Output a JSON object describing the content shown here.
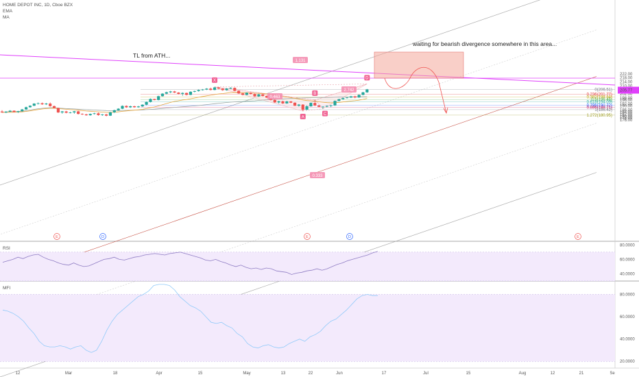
{
  "header": {
    "symbol_line": "HOME DEPOT INC, 1D, Cboe BZX",
    "ema": "EMA",
    "ma": "MA"
  },
  "annotations": {
    "tl_from_ath": "TL from ATH...",
    "waiting": "waiting for bearish divergence somewhere in this area..."
  },
  "pattern_points": [
    {
      "label": "X",
      "date": "2019-04-22",
      "price": 209.0
    },
    {
      "label": "A",
      "date": "2019-05-22",
      "price": 185.0
    },
    {
      "label": "B",
      "date": "2019-05-28",
      "price": 196.0
    },
    {
      "label": "C",
      "date": "2019-05-30",
      "price": 187.3
    },
    {
      "label": "D",
      "date": "2019-06-14",
      "price": 212.0
    }
  ],
  "ratio_labels": [
    "1.131",
    "0.463",
    "2.742",
    "0.333"
  ],
  "fib_levels": [
    {
      "label": "0(206.51)",
      "price": 206.51,
      "color": "#787b86"
    },
    {
      "label": "0.236(201.77)",
      "price": 201.77,
      "color": "#e03a3a"
    },
    {
      "label": "0.382(198.84)",
      "price": 198.84,
      "color": "#b8a000"
    },
    {
      "label": "0.5(196.46)",
      "price": 196.46,
      "color": "#4caf50"
    },
    {
      "label": "0.618(194.09)",
      "price": 194.09,
      "color": "#26a69a"
    },
    {
      "label": "0.786(190.72)",
      "price": 190.72,
      "color": "#2962ff"
    },
    {
      "label": "0.886(188.71)",
      "price": 188.71,
      "color": "#c2185b"
    },
    {
      "label": "1(186.42)",
      "price": 186.42,
      "color": "#787b86"
    },
    {
      "label": "1.272(180.95)",
      "price": 180.95,
      "color": "#9e9d24"
    }
  ],
  "price_axis": {
    "ticks": [
      "222.00",
      "218.00",
      "214.00",
      "210.00",
      "206.00",
      "202.00",
      "198.00",
      "196.00",
      "192.00",
      "190.00",
      "186.00",
      "184.00",
      "182.00",
      "180.00",
      "178.00",
      "176.00"
    ],
    "current_price": "205.77"
  },
  "time_axis": {
    "ticks": [
      "12",
      "Mar",
      "18",
      "Apr",
      "15",
      "May",
      "13",
      "22",
      "Jun",
      "17",
      "Jul",
      "15",
      "Aug",
      "12",
      "21",
      "Se"
    ]
  },
  "events": [
    "E",
    "D",
    "E",
    "D",
    "E"
  ],
  "rsi": {
    "label": "RSI",
    "ticks": [
      "80.0000",
      "60.0000",
      "40.0000"
    ]
  },
  "mfi": {
    "label": "MFI",
    "ticks": [
      "80.0000",
      "60.0000",
      "40.0000",
      "20.0000"
    ]
  },
  "colors": {
    "up": "#26a69a",
    "down": "#ef5350",
    "ema": "#e6a33a",
    "ma": "#9aa5a3",
    "pink_line": "#e040fb",
    "zone": "#f4a79a",
    "oscillator_band": "#f3eafc",
    "oscillator_line": "#7e57c2",
    "pattern_fill": "#fbe4e6"
  },
  "chart_data": [
    {
      "type": "candlestick",
      "title": "HOME DEPOT INC, 1D, Cboe BZX",
      "ylim": [
        176,
        222
      ],
      "candles": [
        {
          "date": "2019-02-04",
          "o": 184.5,
          "h": 185.8,
          "l": 183.3,
          "c": 183.6
        },
        {
          "date": "2019-02-05",
          "o": 183.6,
          "h": 184.9,
          "l": 182.9,
          "c": 184.4
        },
        {
          "date": "2019-02-06",
          "o": 184.4,
          "h": 185.9,
          "l": 183.8,
          "c": 185.3
        },
        {
          "date": "2019-02-07",
          "o": 185.3,
          "h": 185.7,
          "l": 183.7,
          "c": 184.0
        },
        {
          "date": "2019-02-08",
          "o": 184.0,
          "h": 185.2,
          "l": 183.1,
          "c": 184.9
        },
        {
          "date": "2019-02-11",
          "o": 184.9,
          "h": 187.0,
          "l": 184.3,
          "c": 186.6
        },
        {
          "date": "2019-02-12",
          "o": 186.6,
          "h": 189.3,
          "l": 186.2,
          "c": 188.8
        },
        {
          "date": "2019-02-13",
          "o": 188.8,
          "h": 190.7,
          "l": 188.3,
          "c": 190.3
        },
        {
          "date": "2019-02-14",
          "o": 190.3,
          "h": 192.8,
          "l": 189.9,
          "c": 192.4
        },
        {
          "date": "2019-02-15",
          "o": 192.4,
          "h": 193.6,
          "l": 191.5,
          "c": 192.7
        },
        {
          "date": "2019-02-19",
          "o": 192.7,
          "h": 193.5,
          "l": 191.1,
          "c": 191.7
        },
        {
          "date": "2019-02-20",
          "o": 191.7,
          "h": 193.1,
          "l": 191.0,
          "c": 192.4
        },
        {
          "date": "2019-02-21",
          "o": 192.4,
          "h": 193.6,
          "l": 189.3,
          "c": 189.9
        },
        {
          "date": "2019-02-22",
          "o": 189.9,
          "h": 190.5,
          "l": 187.5,
          "c": 188.0
        },
        {
          "date": "2019-02-25",
          "o": 188.0,
          "h": 188.4,
          "l": 183.0,
          "c": 183.6
        },
        {
          "date": "2019-02-26",
          "o": 183.6,
          "h": 185.0,
          "l": 182.3,
          "c": 184.6
        },
        {
          "date": "2019-02-27",
          "o": 184.6,
          "h": 185.2,
          "l": 182.8,
          "c": 183.3
        },
        {
          "date": "2019-02-28",
          "o": 183.3,
          "h": 184.3,
          "l": 182.7,
          "c": 183.6
        },
        {
          "date": "2019-03-01",
          "o": 183.6,
          "h": 185.1,
          "l": 182.3,
          "c": 184.7
        },
        {
          "date": "2019-03-04",
          "o": 184.7,
          "h": 185.2,
          "l": 181.6,
          "c": 182.1
        },
        {
          "date": "2019-03-05",
          "o": 182.1,
          "h": 182.8,
          "l": 181.1,
          "c": 181.6
        },
        {
          "date": "2019-03-06",
          "o": 181.6,
          "h": 182.3,
          "l": 180.3,
          "c": 180.8
        },
        {
          "date": "2019-03-07",
          "o": 180.8,
          "h": 182.5,
          "l": 180.4,
          "c": 182.1
        },
        {
          "date": "2019-03-08",
          "o": 182.1,
          "h": 183.3,
          "l": 181.5,
          "c": 182.7
        },
        {
          "date": "2019-03-11",
          "o": 182.7,
          "h": 183.5,
          "l": 180.3,
          "c": 181.0
        },
        {
          "date": "2019-03-12",
          "o": 181.0,
          "h": 182.0,
          "l": 180.2,
          "c": 181.6
        },
        {
          "date": "2019-03-13",
          "o": 181.6,
          "h": 182.2,
          "l": 179.7,
          "c": 180.4
        },
        {
          "date": "2019-03-14",
          "o": 180.4,
          "h": 184.3,
          "l": 180.0,
          "c": 183.7
        },
        {
          "date": "2019-03-15",
          "o": 183.7,
          "h": 186.4,
          "l": 183.1,
          "c": 185.8
        },
        {
          "date": "2019-03-18",
          "o": 185.8,
          "h": 187.8,
          "l": 185.3,
          "c": 187.3
        },
        {
          "date": "2019-03-19",
          "o": 187.3,
          "h": 190.6,
          "l": 186.9,
          "c": 190.1
        },
        {
          "date": "2019-03-20",
          "o": 190.1,
          "h": 190.6,
          "l": 188.2,
          "c": 188.7
        },
        {
          "date": "2019-03-21",
          "o": 188.7,
          "h": 190.4,
          "l": 188.1,
          "c": 189.8
        },
        {
          "date": "2019-03-22",
          "o": 189.8,
          "h": 190.3,
          "l": 188.3,
          "c": 188.8
        },
        {
          "date": "2019-03-25",
          "o": 188.8,
          "h": 190.2,
          "l": 188.3,
          "c": 189.6
        },
        {
          "date": "2019-03-26",
          "o": 189.6,
          "h": 191.7,
          "l": 189.1,
          "c": 191.3
        },
        {
          "date": "2019-03-27",
          "o": 191.3,
          "h": 194.5,
          "l": 190.7,
          "c": 194.1
        },
        {
          "date": "2019-03-28",
          "o": 194.1,
          "h": 197.6,
          "l": 193.5,
          "c": 197.0
        },
        {
          "date": "2019-03-29",
          "o": 197.0,
          "h": 197.3,
          "l": 195.7,
          "c": 196.0
        },
        {
          "date": "2019-04-01",
          "o": 196.0,
          "h": 200.3,
          "l": 195.6,
          "c": 199.8
        },
        {
          "date": "2019-04-02",
          "o": 199.8,
          "h": 202.8,
          "l": 199.3,
          "c": 202.3
        },
        {
          "date": "2019-04-03",
          "o": 202.3,
          "h": 204.3,
          "l": 201.6,
          "c": 203.7
        },
        {
          "date": "2019-04-04",
          "o": 203.7,
          "h": 205.1,
          "l": 202.8,
          "c": 204.5
        },
        {
          "date": "2019-04-05",
          "o": 204.5,
          "h": 205.0,
          "l": 202.9,
          "c": 203.4
        },
        {
          "date": "2019-04-08",
          "o": 203.4,
          "h": 203.8,
          "l": 201.6,
          "c": 202.1
        },
        {
          "date": "2019-04-09",
          "o": 202.1,
          "h": 203.6,
          "l": 200.2,
          "c": 203.0
        },
        {
          "date": "2019-04-10",
          "o": 203.0,
          "h": 203.4,
          "l": 200.5,
          "c": 201.1
        },
        {
          "date": "2019-04-11",
          "o": 201.1,
          "h": 204.7,
          "l": 200.8,
          "c": 204.2
        },
        {
          "date": "2019-04-12",
          "o": 204.2,
          "h": 205.3,
          "l": 203.6,
          "c": 204.9
        },
        {
          "date": "2019-04-15",
          "o": 204.9,
          "h": 206.5,
          "l": 204.3,
          "c": 205.9
        },
        {
          "date": "2019-04-16",
          "o": 205.9,
          "h": 206.9,
          "l": 205.4,
          "c": 206.4
        },
        {
          "date": "2019-04-17",
          "o": 206.4,
          "h": 207.8,
          "l": 205.9,
          "c": 207.3
        },
        {
          "date": "2019-04-18",
          "o": 207.3,
          "h": 208.3,
          "l": 205.5,
          "c": 206.0
        },
        {
          "date": "2019-04-22",
          "o": 206.0,
          "h": 209.2,
          "l": 205.6,
          "c": 208.5
        },
        {
          "date": "2019-04-23",
          "o": 208.5,
          "h": 208.9,
          "l": 206.6,
          "c": 207.3
        },
        {
          "date": "2019-04-24",
          "o": 207.3,
          "h": 207.7,
          "l": 205.2,
          "c": 205.8
        },
        {
          "date": "2019-04-25",
          "o": 205.8,
          "h": 207.9,
          "l": 205.3,
          "c": 207.4
        },
        {
          "date": "2019-04-26",
          "o": 207.4,
          "h": 208.6,
          "l": 206.9,
          "c": 208.1
        },
        {
          "date": "2019-04-29",
          "o": 208.1,
          "h": 208.5,
          "l": 204.7,
          "c": 205.1
        },
        {
          "date": "2019-04-30",
          "o": 205.1,
          "h": 205.6,
          "l": 202.1,
          "c": 202.6
        },
        {
          "date": "2019-05-01",
          "o": 202.6,
          "h": 203.0,
          "l": 200.5,
          "c": 201.1
        },
        {
          "date": "2019-05-02",
          "o": 201.1,
          "h": 203.6,
          "l": 200.7,
          "c": 203.2
        },
        {
          "date": "2019-05-03",
          "o": 203.2,
          "h": 203.6,
          "l": 201.6,
          "c": 202.0
        },
        {
          "date": "2019-05-06",
          "o": 202.0,
          "h": 202.4,
          "l": 199.2,
          "c": 199.6
        },
        {
          "date": "2019-05-07",
          "o": 199.6,
          "h": 202.1,
          "l": 199.1,
          "c": 201.6
        },
        {
          "date": "2019-05-08",
          "o": 201.6,
          "h": 202.5,
          "l": 199.5,
          "c": 200.0
        },
        {
          "date": "2019-05-09",
          "o": 200.0,
          "h": 200.5,
          "l": 197.9,
          "c": 198.4
        },
        {
          "date": "2019-05-10",
          "o": 198.4,
          "h": 198.9,
          "l": 195.5,
          "c": 196.0
        },
        {
          "date": "2019-05-13",
          "o": 196.0,
          "h": 196.6,
          "l": 193.1,
          "c": 193.6
        },
        {
          "date": "2019-05-14",
          "o": 193.6,
          "h": 195.2,
          "l": 192.4,
          "c": 194.7
        },
        {
          "date": "2019-05-15",
          "o": 194.7,
          "h": 195.2,
          "l": 192.1,
          "c": 192.6
        },
        {
          "date": "2019-05-16",
          "o": 192.6,
          "h": 195.1,
          "l": 192.2,
          "c": 194.6
        },
        {
          "date": "2019-05-17",
          "o": 194.6,
          "h": 195.0,
          "l": 192.8,
          "c": 193.3
        },
        {
          "date": "2019-05-20",
          "o": 193.3,
          "h": 193.7,
          "l": 189.9,
          "c": 190.3
        },
        {
          "date": "2019-05-21",
          "o": 190.3,
          "h": 192.0,
          "l": 189.4,
          "c": 191.4
        },
        {
          "date": "2019-05-22",
          "o": 191.4,
          "h": 191.8,
          "l": 185.0,
          "c": 186.3
        },
        {
          "date": "2019-05-23",
          "o": 186.3,
          "h": 190.6,
          "l": 185.9,
          "c": 189.7
        },
        {
          "date": "2019-05-24",
          "o": 189.7,
          "h": 193.5,
          "l": 189.3,
          "c": 193.1
        },
        {
          "date": "2019-05-28",
          "o": 193.1,
          "h": 196.0,
          "l": 190.0,
          "c": 190.5
        },
        {
          "date": "2019-05-29",
          "o": 190.5,
          "h": 191.0,
          "l": 188.7,
          "c": 189.2
        },
        {
          "date": "2019-05-30",
          "o": 189.2,
          "h": 189.7,
          "l": 187.3,
          "c": 189.4
        },
        {
          "date": "2019-05-31",
          "o": 189.4,
          "h": 190.6,
          "l": 188.7,
          "c": 190.1
        },
        {
          "date": "2019-06-03",
          "o": 190.1,
          "h": 191.1,
          "l": 188.8,
          "c": 190.6
        },
        {
          "date": "2019-06-04",
          "o": 190.6,
          "h": 195.6,
          "l": 190.2,
          "c": 195.1
        },
        {
          "date": "2019-06-05",
          "o": 195.1,
          "h": 197.3,
          "l": 194.7,
          "c": 196.8
        },
        {
          "date": "2019-06-06",
          "o": 196.8,
          "h": 198.4,
          "l": 196.2,
          "c": 197.9
        },
        {
          "date": "2019-06-07",
          "o": 197.9,
          "h": 198.9,
          "l": 197.5,
          "c": 198.4
        },
        {
          "date": "2019-06-10",
          "o": 198.4,
          "h": 200.1,
          "l": 198.1,
          "c": 199.6
        },
        {
          "date": "2019-06-11",
          "o": 199.6,
          "h": 200.2,
          "l": 197.8,
          "c": 198.5
        },
        {
          "date": "2019-06-12",
          "o": 198.5,
          "h": 201.6,
          "l": 198.1,
          "c": 201.1
        },
        {
          "date": "2019-06-13",
          "o": 201.1,
          "h": 204.1,
          "l": 200.7,
          "c": 203.6
        },
        {
          "date": "2019-06-14",
          "o": 203.6,
          "h": 207.0,
          "l": 203.2,
          "c": 206.5
        }
      ]
    },
    {
      "type": "line",
      "title": "RSI",
      "ylim": [
        30,
        85
      ],
      "values": [
        56,
        58,
        60,
        63,
        61,
        64,
        66,
        67,
        63,
        60,
        58,
        55,
        53,
        52,
        55,
        52,
        50,
        51,
        54,
        57,
        60,
        61,
        63,
        60,
        59,
        61,
        63,
        64,
        66,
        67,
        68,
        67,
        66,
        68,
        69,
        70,
        68,
        66,
        64,
        62,
        59,
        58,
        60,
        57,
        55,
        52,
        50,
        52,
        49,
        47,
        48,
        46,
        48,
        47,
        44,
        43,
        42,
        39,
        41,
        42,
        44,
        45,
        47,
        45,
        47,
        50,
        53,
        55,
        58,
        60,
        62,
        64,
        66,
        69,
        71
      ]
    },
    {
      "type": "line",
      "title": "MFI",
      "ylim": [
        14,
        92
      ],
      "values": [
        66,
        65,
        63,
        60,
        56,
        50,
        45,
        38,
        34,
        33,
        33,
        34,
        33,
        31,
        33,
        34,
        30,
        28,
        30,
        38,
        48,
        56,
        62,
        66,
        70,
        74,
        78,
        80,
        83,
        88,
        89,
        89,
        88,
        84,
        78,
        74,
        70,
        68,
        65,
        60,
        55,
        54,
        55,
        52,
        50,
        45,
        42,
        36,
        33,
        32,
        34,
        35,
        33,
        32,
        33,
        36,
        38,
        40,
        38,
        42,
        44,
        47,
        52,
        56,
        58,
        62,
        66,
        71,
        76,
        79,
        80,
        79,
        79
      ]
    }
  ]
}
